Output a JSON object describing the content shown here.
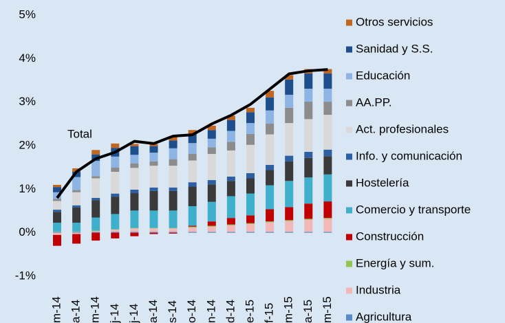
{
  "chart_data": {
    "type": "bar",
    "categories": [
      "m-14",
      "a-14",
      "m-14",
      "j-14",
      "j-14",
      "a-14",
      "s-14",
      "o-14",
      "n-14",
      "d-14",
      "e-15",
      "f-15",
      "m-15",
      "a-15",
      "m-15"
    ],
    "ylim": [
      -1,
      5
    ],
    "yticks": [
      {
        "value": -1,
        "label": "-1%"
      },
      {
        "value": 0,
        "label": "0%"
      },
      {
        "value": 1,
        "label": "1%"
      },
      {
        "value": 2,
        "label": "2%"
      },
      {
        "value": 3,
        "label": "3%"
      },
      {
        "value": 4,
        "label": "4%"
      },
      {
        "value": 5,
        "label": "5%"
      }
    ],
    "stacked": true,
    "series": [
      {
        "name": "Agricultura",
        "color": "#5a8ac6",
        "values": [
          0.02,
          0.02,
          0.02,
          0.02,
          0.02,
          0.02,
          0.02,
          0.02,
          0.02,
          0.02,
          0.02,
          0.02,
          0.02,
          0.02,
          0.02
        ]
      },
      {
        "name": "Industria",
        "color": "#f2b8b8",
        "values": [
          -0.05,
          -0.03,
          0.02,
          0.05,
          0.08,
          0.08,
          0.08,
          0.1,
          0.12,
          0.15,
          0.18,
          0.22,
          0.25,
          0.28,
          0.3
        ]
      },
      {
        "name": "Energía y sum.",
        "color": "#92c353",
        "values": [
          0.01,
          0.01,
          0.01,
          0.01,
          0.01,
          0.01,
          0.01,
          0.02,
          0.02,
          0.02,
          0.02,
          0.02,
          0.02,
          0.02,
          0.02
        ]
      },
      {
        "name": "Construcción",
        "color": "#c00000",
        "values": [
          -0.25,
          -0.22,
          -0.18,
          -0.13,
          -0.08,
          -0.03,
          -0.02,
          0.02,
          0.1,
          0.15,
          0.18,
          0.28,
          0.3,
          0.35,
          0.38
        ]
      },
      {
        "name": "Comercio y transporte",
        "color": "#3fb0cc",
        "values": [
          0.2,
          0.2,
          0.3,
          0.35,
          0.4,
          0.4,
          0.4,
          0.45,
          0.45,
          0.5,
          0.5,
          0.55,
          0.6,
          0.6,
          0.62
        ]
      },
      {
        "name": "Hostelería",
        "color": "#3a3a3a",
        "values": [
          0.25,
          0.35,
          0.4,
          0.4,
          0.4,
          0.45,
          0.45,
          0.45,
          0.4,
          0.35,
          0.35,
          0.35,
          0.45,
          0.45,
          0.42
        ]
      },
      {
        "name": "Info. y comunicación",
        "color": "#2e5fa3",
        "values": [
          0.05,
          0.05,
          0.05,
          0.07,
          0.08,
          0.08,
          0.08,
          0.1,
          0.1,
          0.1,
          0.12,
          0.12,
          0.13,
          0.14,
          0.15
        ]
      },
      {
        "name": "Act. profesionales",
        "color": "#d9d9d9",
        "values": [
          0.2,
          0.3,
          0.45,
          0.5,
          0.5,
          0.5,
          0.5,
          0.5,
          0.6,
          0.6,
          0.65,
          0.7,
          0.75,
          0.75,
          0.8
        ]
      },
      {
        "name": "AA.PP.",
        "color": "#8c8c8c",
        "values": [
          0.05,
          0.05,
          0.05,
          0.1,
          0.1,
          0.1,
          0.15,
          0.15,
          0.15,
          0.2,
          0.25,
          0.25,
          0.35,
          0.4,
          0.3
        ]
      },
      {
        "name": "Educación",
        "color": "#8db4e2",
        "values": [
          0.15,
          0.3,
          0.35,
          0.25,
          0.2,
          0.2,
          0.25,
          0.25,
          0.2,
          0.25,
          0.25,
          0.3,
          0.3,
          0.3,
          0.3
        ]
      },
      {
        "name": "Sanidad y S.S.",
        "color": "#1f4e8c",
        "values": [
          0.12,
          0.12,
          0.15,
          0.2,
          0.2,
          0.15,
          0.18,
          0.2,
          0.2,
          0.25,
          0.25,
          0.3,
          0.35,
          0.35,
          0.35
        ]
      },
      {
        "name": "Otros servicios",
        "color": "#c0661f",
        "values": [
          0.05,
          0.08,
          0.1,
          0.1,
          0.05,
          0.05,
          0.1,
          0.1,
          0.1,
          0.1,
          0.1,
          0.15,
          0.1,
          0.1,
          0.1
        ]
      }
    ],
    "line": {
      "label": "Total",
      "color": "#000000",
      "values": [
        0.8,
        1.4,
        1.7,
        1.85,
        2.1,
        2.05,
        2.22,
        2.25,
        2.5,
        2.7,
        2.95,
        3.3,
        3.65,
        3.72,
        3.75
      ]
    }
  }
}
